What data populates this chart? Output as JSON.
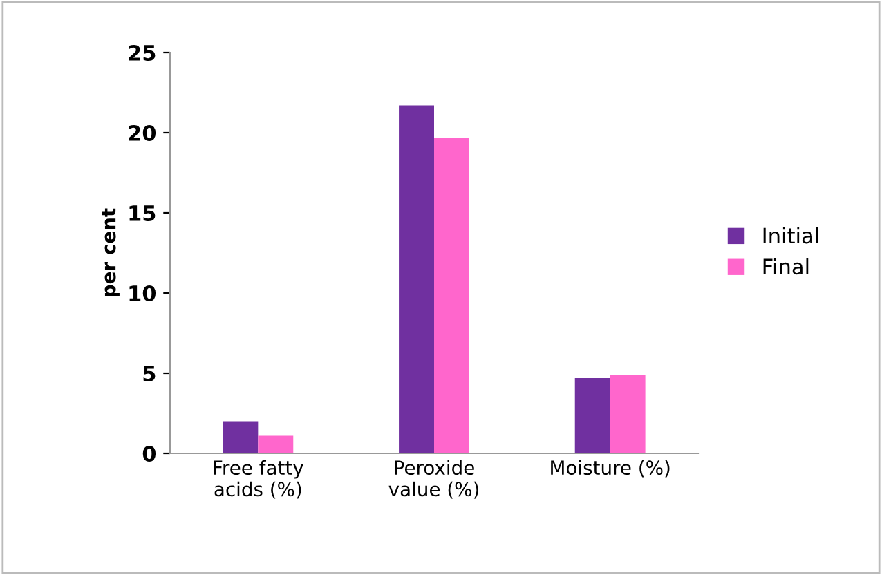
{
  "chart_data": {
    "type": "bar",
    "ylabel": "per cent",
    "categories": [
      "Free fatty\nacids (%)",
      "Peroxide\nvalue (%)",
      "Moisture (%)"
    ],
    "series": [
      {
        "name": "Initial",
        "color": "#7030a0",
        "values": [
          2.0,
          21.7,
          4.7
        ]
      },
      {
        "name": "Final",
        "color": "#ff66cc",
        "values": [
          1.1,
          19.7,
          4.9
        ]
      }
    ],
    "ylim": [
      0,
      25
    ],
    "yticks": [
      0,
      5,
      10,
      15,
      20,
      25
    ],
    "grid": false,
    "legend": "right"
  }
}
